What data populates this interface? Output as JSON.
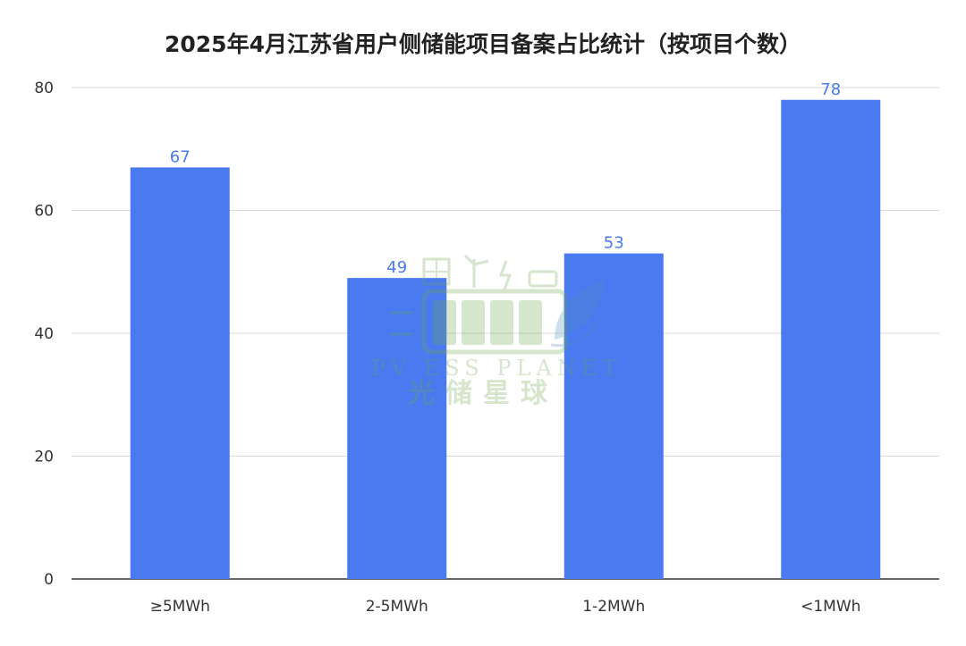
{
  "chart_data": {
    "type": "bar",
    "title": "2025年4月江苏省用户侧储能项目备案占比统计（按项目个数）",
    "categories": [
      "≥5MWh",
      "2-5MWh",
      "1-2MWh",
      "<1MWh"
    ],
    "values": [
      67,
      49,
      53,
      78
    ],
    "ylim": [
      0,
      80
    ],
    "yticks": [
      0,
      20,
      40,
      60,
      80
    ],
    "grid": true,
    "data_labels": true,
    "xlabel": "",
    "ylabel": ""
  },
  "colors": {
    "bar": "#4a7af0",
    "data_label": "#4a7af0",
    "grid": "#d9d9d9",
    "axis": "#333333"
  },
  "watermark": {
    "text_en": "PV ESS PLANET",
    "text_cn": "光储星球",
    "icon": "battery-leaf-logo"
  }
}
